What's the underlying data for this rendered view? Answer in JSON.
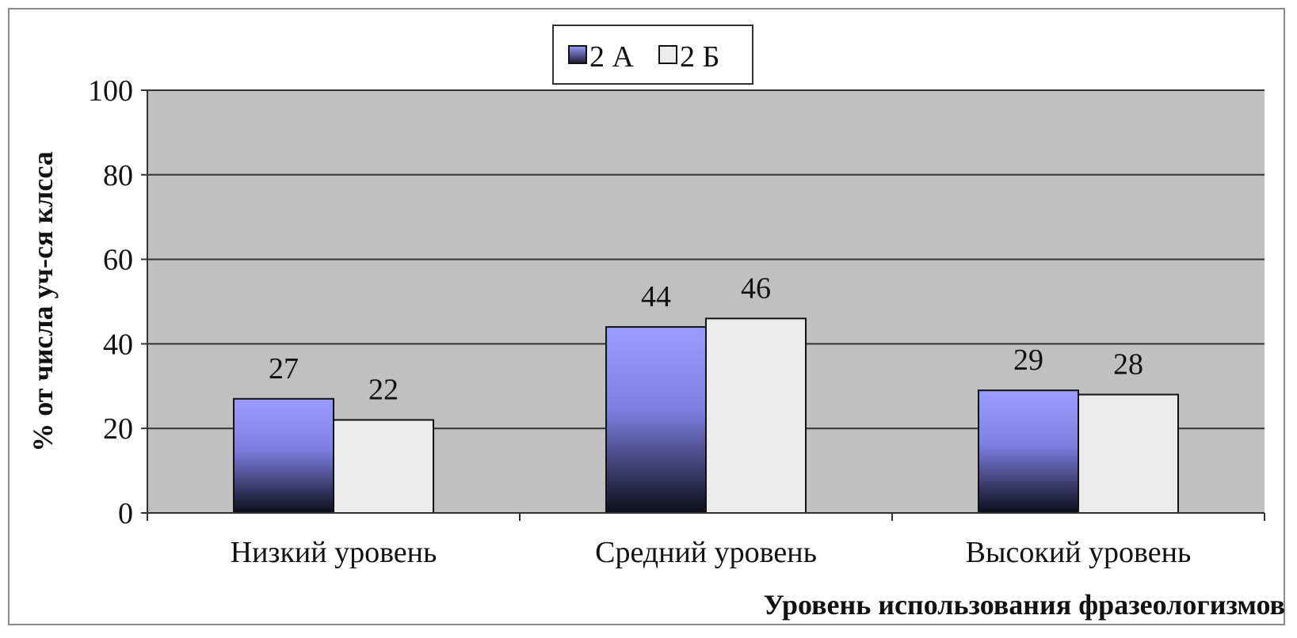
{
  "chart_data": {
    "type": "bar",
    "categories": [
      "Низкий уровень",
      "Средний уровень",
      "Высокий уровень"
    ],
    "series": [
      {
        "name": "2 А",
        "values": [
          27,
          44,
          29
        ],
        "color": "#8a8cf2"
      },
      {
        "name": "2 Б",
        "values": [
          22,
          46,
          28
        ],
        "color": "#ececec"
      }
    ],
    "xlabel": "Уровень использования фразеологизмов",
    "ylabel": "% от числа уч-ся клсса",
    "ylim": [
      0,
      100
    ],
    "yticks": [
      "0",
      "20",
      "40",
      "60",
      "80",
      "100"
    ],
    "grid": true,
    "legend": "top-center",
    "plot_background": "#c0c0c0"
  }
}
